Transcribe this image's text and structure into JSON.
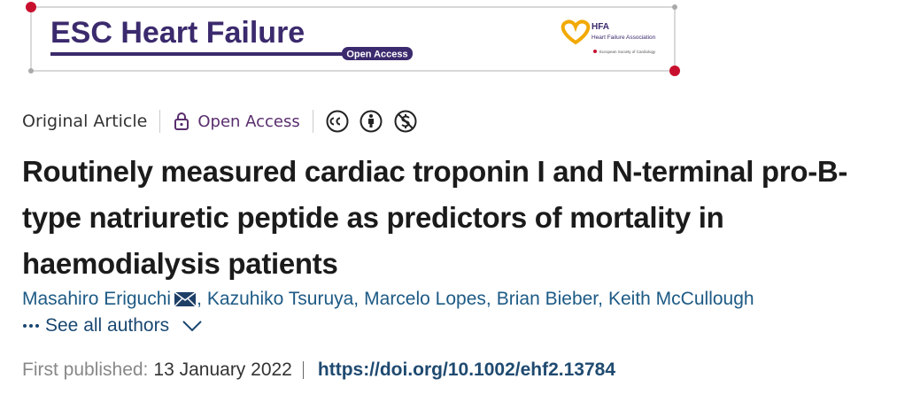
{
  "banner": {
    "journal": "ESC Heart Failure",
    "badge": "Open Access",
    "society_short": "HFA",
    "society_name": "Heart Failure Association",
    "society_parent": "European Society of Cardiology"
  },
  "article": {
    "type": "Original Article",
    "access": "Open Access",
    "title": "Routinely measured cardiac troponin I and N-terminal pro-B-type natriuretic peptide as predictors of mortality in haemodialysis patients",
    "authors": [
      "Masahiro Eriguchi",
      "Kazuhiko Tsuruya",
      "Marcelo Lopes",
      "Brian Bieber",
      "Keith McCullough"
    ],
    "author_separator": ",",
    "see_all": "See all authors",
    "published_label": "First published:",
    "published_date": "13 January 2022",
    "doi": "https://doi.org/10.1002/ehf2.13784"
  }
}
